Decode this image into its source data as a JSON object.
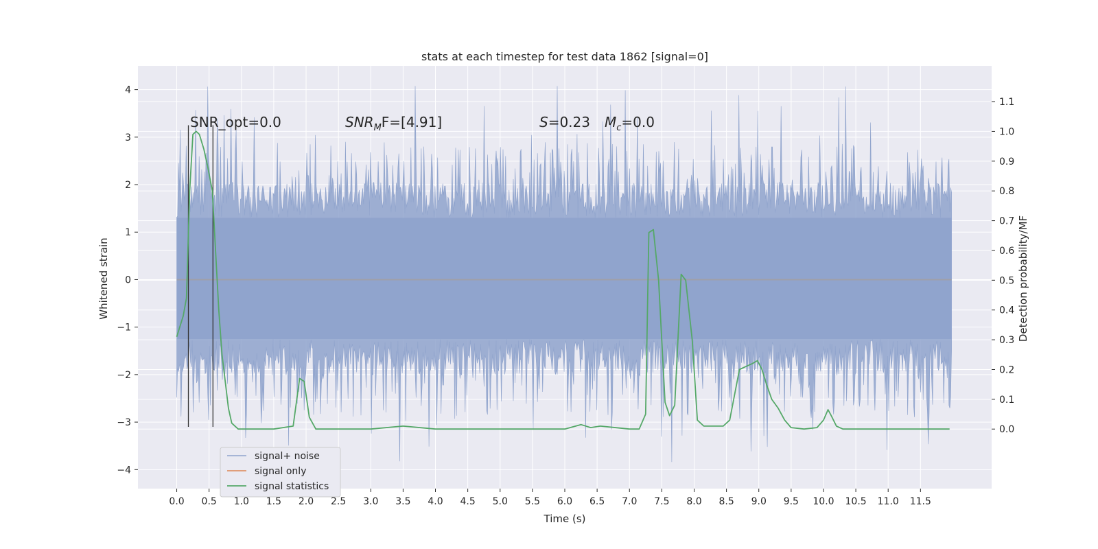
{
  "chart_data": {
    "type": "line",
    "title": "stats at each timestep for test data 1862 [signal=0]",
    "xlabel": "Time (s)",
    "ylabel_left": "Whitened strain",
    "ylabel_right": "Detection probability/MF",
    "x_ticks": [
      "0.0",
      "0.5",
      "1.0",
      "1.5",
      "2.0",
      "2.5",
      "3.0",
      "3.5",
      "4.0",
      "4.5",
      "5.0",
      "5.5",
      "6.0",
      "6.5",
      "7.0",
      "7.5",
      "8.0",
      "8.5",
      "9.0",
      "9.5",
      "10.0",
      "10.5",
      "11.0",
      "11.5"
    ],
    "left_ticks": [
      "4",
      "3",
      "2",
      "1",
      "0",
      "−1",
      "−2",
      "−3",
      "−4"
    ],
    "right_ticks": [
      "1.1",
      "1.0",
      "0.9",
      "0.8",
      "0.7",
      "0.6",
      "0.5",
      "0.4",
      "0.3",
      "0.2",
      "0.1",
      "0.0"
    ],
    "xlim": [
      -0.6,
      12.6
    ],
    "ylim_left": [
      -4.4,
      4.5
    ],
    "ylim_right": [
      -0.2,
      1.22
    ],
    "annotations": {
      "snr_opt": "SNR_opt=0.0",
      "snr_mf_prefix": "SNR",
      "snr_mf_sub": "M",
      "snr_mf_suffix": "F=[4.91]",
      "s_label": "S",
      "s_value": "=0.23",
      "mc_label": "M",
      "mc_sub": "c",
      "mc_value": "=0.0"
    },
    "vertical_markers_s": [
      0.18,
      0.56
    ],
    "noise_envelope": {
      "typical_upper": 1.3,
      "typical_lower": -1.25,
      "max_upper": 4.1,
      "min_lower": -3.9,
      "x_range": [
        0.0,
        11.98
      ]
    },
    "series": [
      {
        "name": "signal+ noise",
        "color": "#8fa3cc"
      },
      {
        "name": "signal only",
        "color": "#dd8452"
      },
      {
        "name": "signal statistics",
        "color": "#55a868",
        "x": [
          0.0,
          0.1,
          0.15,
          0.2,
          0.25,
          0.3,
          0.35,
          0.42,
          0.48,
          0.55,
          0.6,
          0.65,
          0.7,
          0.75,
          0.8,
          0.85,
          0.9,
          0.95,
          1.0,
          1.1,
          1.5,
          1.8,
          1.9,
          1.97,
          2.05,
          2.15,
          2.5,
          3.0,
          3.5,
          4.0,
          5.0,
          6.0,
          6.25,
          6.4,
          6.55,
          7.0,
          7.15,
          7.25,
          7.3,
          7.37,
          7.45,
          7.55,
          7.62,
          7.7,
          7.8,
          7.87,
          7.92,
          7.97,
          8.05,
          8.15,
          8.45,
          8.55,
          8.7,
          8.8,
          8.9,
          8.98,
          9.05,
          9.12,
          9.2,
          9.3,
          9.4,
          9.5,
          9.7,
          9.9,
          10.0,
          10.07,
          10.12,
          10.2,
          10.3,
          10.5,
          11.0,
          11.5,
          11.95
        ],
        "y": [
          0.31,
          0.38,
          0.44,
          0.8,
          0.99,
          1.0,
          0.99,
          0.94,
          0.88,
          0.8,
          0.6,
          0.4,
          0.25,
          0.16,
          0.07,
          0.02,
          0.01,
          0.0,
          0.0,
          0.0,
          0.0,
          0.01,
          0.17,
          0.16,
          0.04,
          0.0,
          0.0,
          0.0,
          0.01,
          0.0,
          0.0,
          0.0,
          0.015,
          0.005,
          0.01,
          0.0,
          0.0,
          0.05,
          0.66,
          0.67,
          0.5,
          0.09,
          0.045,
          0.08,
          0.52,
          0.5,
          0.4,
          0.3,
          0.03,
          0.01,
          0.01,
          0.03,
          0.2,
          0.21,
          0.22,
          0.23,
          0.2,
          0.15,
          0.1,
          0.07,
          0.03,
          0.005,
          0.0,
          0.005,
          0.03,
          0.065,
          0.045,
          0.01,
          0.0,
          0.0,
          0.0,
          0.0,
          0.0
        ]
      }
    ],
    "legend_position": "lower-left",
    "grid": true
  }
}
